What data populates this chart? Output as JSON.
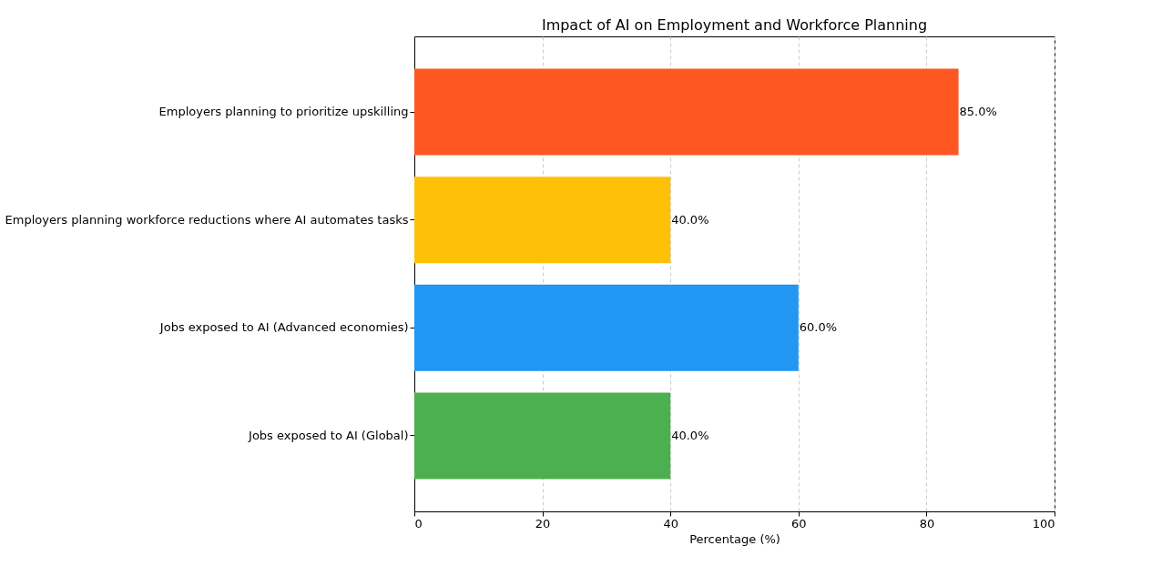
{
  "chart_data": {
    "type": "bar",
    "orientation": "horizontal",
    "title": "Impact of AI on Employment and Workforce Planning",
    "xlabel": "Percentage (%)",
    "categories": [
      "Employers planning to prioritize upskilling",
      "Employers planning workforce reductions where AI automates tasks",
      "Jobs exposed to AI (Advanced economies)",
      "Jobs exposed to AI (Global)"
    ],
    "values": [
      85,
      40,
      60,
      40
    ],
    "colors": [
      "#ff5722",
      "#ffc107",
      "#2196f3",
      "#4caf50"
    ],
    "value_labels": [
      "85.0%",
      "40.0%",
      "60.0%",
      "40.0%"
    ],
    "xlim": [
      0,
      100
    ],
    "xticks": [
      0,
      20,
      40,
      60,
      80,
      100
    ],
    "grid": "x",
    "legend": false
  }
}
